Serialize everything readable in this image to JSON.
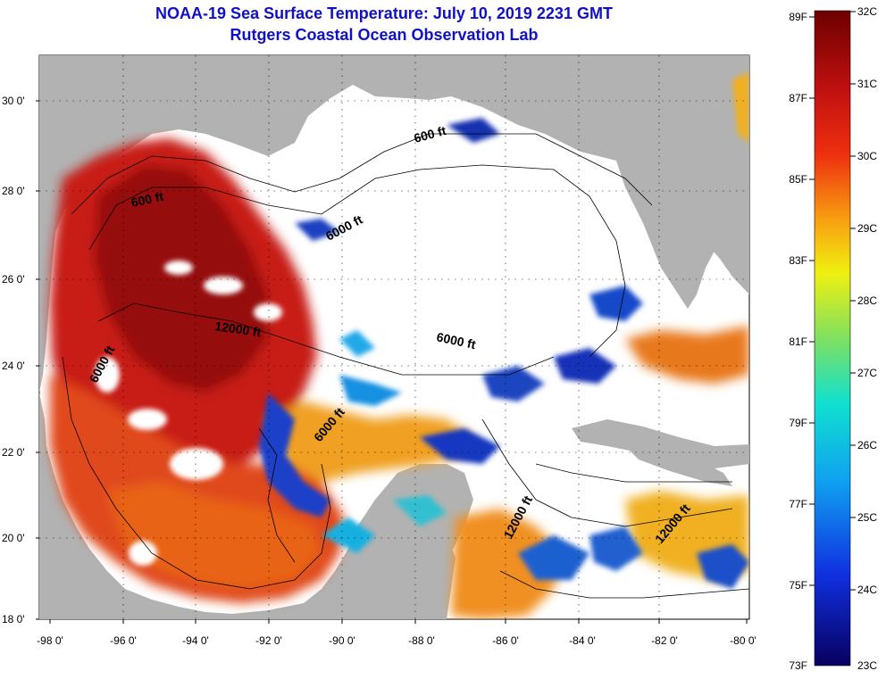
{
  "header": {
    "title_line1": "NOAA-19 Sea Surface Temperature:  July 10, 2019 2231 GMT",
    "title_line2": "Rutgers Coastal Ocean Observation Lab"
  },
  "map": {
    "lat_labels": [
      "30 0'",
      "28 0'",
      "26 0'",
      "24 0'",
      "22 0'",
      "20 0'",
      "18 0'"
    ],
    "lon_labels": [
      "-98 0'",
      "-96 0'",
      "-94 0'",
      "-92 0'",
      "-90 0'",
      "-88 0'",
      "-86 0'",
      "-84 0'",
      "-82 0'",
      "-80 0'"
    ],
    "contour_labels": [
      "600 ft",
      "600 ft",
      "6000 ft",
      "12000 ft",
      "6000 ft",
      "6000 ft",
      "6000 ft",
      "12000 ft",
      "12000 ft"
    ],
    "colors": {
      "land": "#b2b2b2",
      "cloud": "#ffffff",
      "hot": "#b81414",
      "warm": "#e8501e",
      "mid": "#f0a020",
      "cool": "#18a8e8",
      "cold": "#1020a8"
    }
  },
  "colorbar": {
    "fahrenheit": [
      "89F",
      "87F",
      "85F",
      "83F",
      "81F",
      "79F",
      "77F",
      "75F",
      "73F"
    ],
    "celsius": [
      "32C",
      "31C",
      "30C",
      "29C",
      "28C",
      "27C",
      "26C",
      "25C",
      "24C",
      "23C"
    ]
  }
}
